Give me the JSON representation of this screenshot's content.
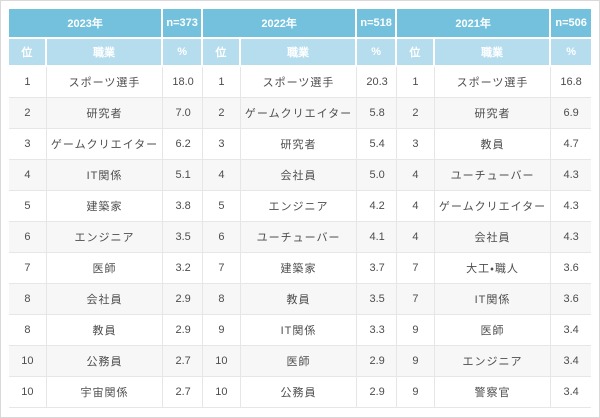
{
  "chart_data": {
    "type": "table",
    "column_headers": {
      "rank": "位",
      "occupation": "職業",
      "percent": "%"
    },
    "groups": [
      {
        "year": "2023年",
        "n_label": "n=373",
        "rows": [
          {
            "rank": "1",
            "occupation": "スポーツ選手",
            "percent": "18.0"
          },
          {
            "rank": "2",
            "occupation": "研究者",
            "percent": "7.0"
          },
          {
            "rank": "3",
            "occupation": "ゲームクリエイター",
            "percent": "6.2"
          },
          {
            "rank": "4",
            "occupation": "IT関係",
            "percent": "5.1"
          },
          {
            "rank": "5",
            "occupation": "建築家",
            "percent": "3.8"
          },
          {
            "rank": "6",
            "occupation": "エンジニア",
            "percent": "3.5"
          },
          {
            "rank": "7",
            "occupation": "医師",
            "percent": "3.2"
          },
          {
            "rank": "8",
            "occupation": "会社員",
            "percent": "2.9"
          },
          {
            "rank": "8",
            "occupation": "教員",
            "percent": "2.9"
          },
          {
            "rank": "10",
            "occupation": "公務員",
            "percent": "2.7"
          },
          {
            "rank": "10",
            "occupation": "宇宙関係",
            "percent": "2.7"
          }
        ]
      },
      {
        "year": "2022年",
        "n_label": "n=518",
        "rows": [
          {
            "rank": "1",
            "occupation": "スポーツ選手",
            "percent": "20.3"
          },
          {
            "rank": "2",
            "occupation": "ゲームクリエイター",
            "percent": "5.8"
          },
          {
            "rank": "3",
            "occupation": "研究者",
            "percent": "5.4"
          },
          {
            "rank": "4",
            "occupation": "会社員",
            "percent": "5.0"
          },
          {
            "rank": "5",
            "occupation": "エンジニア",
            "percent": "4.2"
          },
          {
            "rank": "6",
            "occupation": "ユーチューバー",
            "percent": "4.1"
          },
          {
            "rank": "7",
            "occupation": "建築家",
            "percent": "3.7"
          },
          {
            "rank": "8",
            "occupation": "教員",
            "percent": "3.5"
          },
          {
            "rank": "9",
            "occupation": "IT関係",
            "percent": "3.3"
          },
          {
            "rank": "10",
            "occupation": "医師",
            "percent": "2.9"
          },
          {
            "rank": "10",
            "occupation": "公務員",
            "percent": "2.9"
          }
        ]
      },
      {
        "year": "2021年",
        "n_label": "n=506",
        "rows": [
          {
            "rank": "1",
            "occupation": "スポーツ選手",
            "percent": "16.8"
          },
          {
            "rank": "2",
            "occupation": "研究者",
            "percent": "6.9"
          },
          {
            "rank": "3",
            "occupation": "教員",
            "percent": "4.7"
          },
          {
            "rank": "4",
            "occupation": "ユーチューバー",
            "percent": "4.3"
          },
          {
            "rank": "4",
            "occupation": "ゲームクリエイター",
            "percent": "4.3"
          },
          {
            "rank": "4",
            "occupation": "会社員",
            "percent": "4.3"
          },
          {
            "rank": "7",
            "occupation": "大工・職人",
            "percent": "3.6"
          },
          {
            "rank": "7",
            "occupation": "IT関係",
            "percent": "3.6"
          },
          {
            "rank": "9",
            "occupation": "医師",
            "percent": "3.4"
          },
          {
            "rank": "9",
            "occupation": "エンジニア",
            "percent": "3.4"
          },
          {
            "rank": "9",
            "occupation": "警察官",
            "percent": "3.4"
          }
        ]
      }
    ]
  },
  "colors": {
    "header_bg": "#73c1dd",
    "subheader_bg": "#b5ddee",
    "row_alt_bg": "#f7f7f7",
    "border": "#e6e6e6",
    "header_text": "#ffffff",
    "body_text": "#4d4d4d"
  }
}
